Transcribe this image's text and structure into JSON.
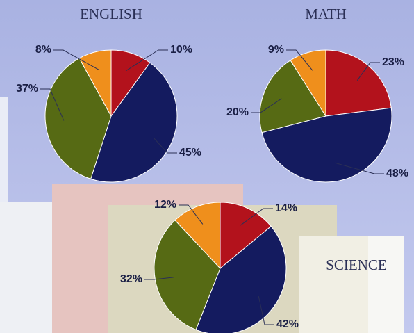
{
  "chart_data": [
    {
      "type": "pie",
      "title": "ENGLISH",
      "values": [
        10,
        45,
        37,
        8
      ],
      "value_labels": [
        "10%",
        "45%",
        "37%",
        "8%"
      ],
      "colors": [
        "#b3121c",
        "#141b5f",
        "#566a14",
        "#ef8f1c"
      ]
    },
    {
      "type": "pie",
      "title": "MATH",
      "values": [
        23,
        48,
        20,
        9
      ],
      "value_labels": [
        "23%",
        "48%",
        "20%",
        "9%"
      ],
      "colors": [
        "#b3121c",
        "#141b5f",
        "#566a14",
        "#ef8f1c"
      ]
    },
    {
      "type": "pie",
      "title": "SCIENCE",
      "values": [
        14,
        42,
        32,
        12
      ],
      "value_labels": [
        "14%",
        "42%",
        "32%",
        "12%"
      ],
      "colors": [
        "#b3121c",
        "#141b5f",
        "#566a14",
        "#ef8f1c"
      ]
    }
  ]
}
